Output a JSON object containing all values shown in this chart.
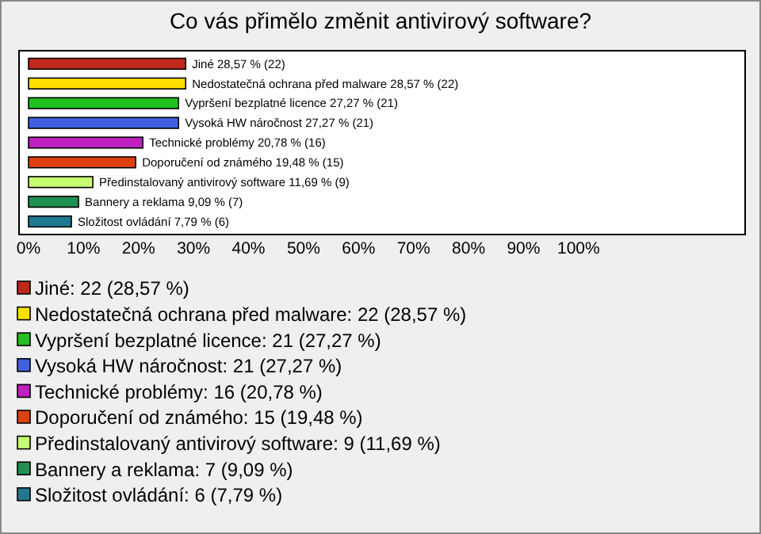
{
  "chart_data": {
    "type": "bar",
    "orientation": "horizontal",
    "title": "Co vás přimělo změnit antivirový software?",
    "categories": [
      null,
      null,
      null,
      null,
      null,
      null,
      null,
      null,
      null
    ],
    "values": [
      28.57,
      28.57,
      27.27,
      27.27,
      20.78,
      19.48,
      11.69,
      9.09,
      7.79
    ],
    "colors": [
      "#c0281c",
      "#ffe000",
      "#20c020",
      "#4060e0",
      "#c020c0",
      "#e04010",
      "#c8ff70",
      "#209050",
      "#207890"
    ],
    "value_labels": [
      "Jiné 28,57 % (22)",
      "Nedostatečná ochrana před malware 28,57 % (22)",
      "Vypršení bezplatné licence 27,27 % (21)",
      "Vysoká HW náročnost 27,27 % (21)",
      "Technické problémy 20,78 % (16)",
      "Doporučení od známého 19,48 % (15)",
      "Předinstalovaný antivirový software 11,69 % (9)",
      "Bannery a reklama 9,09 % (7)",
      "Složitost ovládání 7,79 % (6)"
    ],
    "annotations": [
      "Jiné: 22 (28,57 %)",
      "Nedostatečná ochrana před malware: 22 (28,57 %)",
      "Vypršení bezplatné licence: 21 (27,27 %)",
      "Vysoká HW náročnost: 21 (27,27 %)",
      "Technické problémy: 16 (20,78 %)",
      "Doporučení od známého: 15 (19,48 %)",
      "Předinstalovaný antivirový software: 9 (11,69 %)",
      "Bannery a reklama: 7 (9,09 %)",
      "Složitost ovládání: 6 (7,79 %)"
    ],
    "xlim": [
      0,
      130
    ],
    "xticks": [
      {
        "value": 0,
        "label": "0%"
      },
      {
        "value": 10,
        "label": "10%"
      },
      {
        "value": 20,
        "label": "20%"
      },
      {
        "value": 30,
        "label": "30%"
      },
      {
        "value": 40,
        "label": "40%"
      },
      {
        "value": 50,
        "label": "50%"
      },
      {
        "value": 60,
        "label": "60%"
      },
      {
        "value": 70,
        "label": "70%"
      },
      {
        "value": 80,
        "label": "80%"
      },
      {
        "value": 90,
        "label": "90%"
      },
      {
        "value": 100,
        "label": "100%"
      }
    ]
  }
}
